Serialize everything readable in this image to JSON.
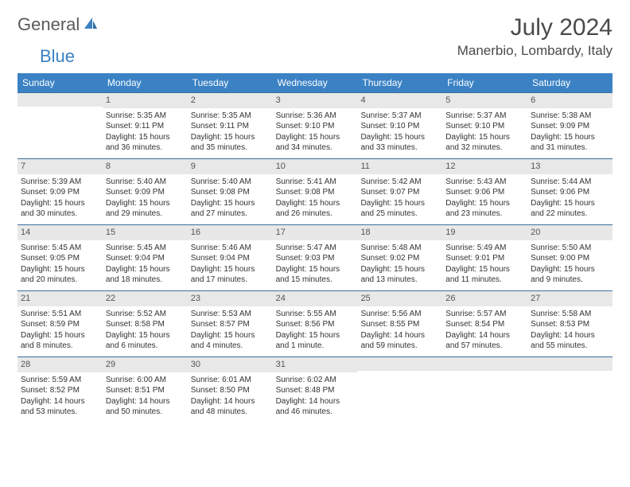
{
  "logo": {
    "text1": "General",
    "text2": "Blue"
  },
  "title": "July 2024",
  "location": "Manerbio, Lombardy, Italy",
  "colors": {
    "header_bg": "#3b82c4",
    "header_text": "#ffffff",
    "row_border": "#3b6fa0",
    "daynum_bg": "#e8e8e8",
    "daynum_text": "#555555",
    "body_text": "#333333",
    "logo_gray": "#5a5a5a",
    "logo_blue": "#3b82c4"
  },
  "weekdays": [
    "Sunday",
    "Monday",
    "Tuesday",
    "Wednesday",
    "Thursday",
    "Friday",
    "Saturday"
  ],
  "weeks": [
    [
      {
        "day": "",
        "sunrise": "",
        "sunset": "",
        "daylight1": "",
        "daylight2": ""
      },
      {
        "day": "1",
        "sunrise": "Sunrise: 5:35 AM",
        "sunset": "Sunset: 9:11 PM",
        "daylight1": "Daylight: 15 hours",
        "daylight2": "and 36 minutes."
      },
      {
        "day": "2",
        "sunrise": "Sunrise: 5:35 AM",
        "sunset": "Sunset: 9:11 PM",
        "daylight1": "Daylight: 15 hours",
        "daylight2": "and 35 minutes."
      },
      {
        "day": "3",
        "sunrise": "Sunrise: 5:36 AM",
        "sunset": "Sunset: 9:10 PM",
        "daylight1": "Daylight: 15 hours",
        "daylight2": "and 34 minutes."
      },
      {
        "day": "4",
        "sunrise": "Sunrise: 5:37 AM",
        "sunset": "Sunset: 9:10 PM",
        "daylight1": "Daylight: 15 hours",
        "daylight2": "and 33 minutes."
      },
      {
        "day": "5",
        "sunrise": "Sunrise: 5:37 AM",
        "sunset": "Sunset: 9:10 PM",
        "daylight1": "Daylight: 15 hours",
        "daylight2": "and 32 minutes."
      },
      {
        "day": "6",
        "sunrise": "Sunrise: 5:38 AM",
        "sunset": "Sunset: 9:09 PM",
        "daylight1": "Daylight: 15 hours",
        "daylight2": "and 31 minutes."
      }
    ],
    [
      {
        "day": "7",
        "sunrise": "Sunrise: 5:39 AM",
        "sunset": "Sunset: 9:09 PM",
        "daylight1": "Daylight: 15 hours",
        "daylight2": "and 30 minutes."
      },
      {
        "day": "8",
        "sunrise": "Sunrise: 5:40 AM",
        "sunset": "Sunset: 9:09 PM",
        "daylight1": "Daylight: 15 hours",
        "daylight2": "and 29 minutes."
      },
      {
        "day": "9",
        "sunrise": "Sunrise: 5:40 AM",
        "sunset": "Sunset: 9:08 PM",
        "daylight1": "Daylight: 15 hours",
        "daylight2": "and 27 minutes."
      },
      {
        "day": "10",
        "sunrise": "Sunrise: 5:41 AM",
        "sunset": "Sunset: 9:08 PM",
        "daylight1": "Daylight: 15 hours",
        "daylight2": "and 26 minutes."
      },
      {
        "day": "11",
        "sunrise": "Sunrise: 5:42 AM",
        "sunset": "Sunset: 9:07 PM",
        "daylight1": "Daylight: 15 hours",
        "daylight2": "and 25 minutes."
      },
      {
        "day": "12",
        "sunrise": "Sunrise: 5:43 AM",
        "sunset": "Sunset: 9:06 PM",
        "daylight1": "Daylight: 15 hours",
        "daylight2": "and 23 minutes."
      },
      {
        "day": "13",
        "sunrise": "Sunrise: 5:44 AM",
        "sunset": "Sunset: 9:06 PM",
        "daylight1": "Daylight: 15 hours",
        "daylight2": "and 22 minutes."
      }
    ],
    [
      {
        "day": "14",
        "sunrise": "Sunrise: 5:45 AM",
        "sunset": "Sunset: 9:05 PM",
        "daylight1": "Daylight: 15 hours",
        "daylight2": "and 20 minutes."
      },
      {
        "day": "15",
        "sunrise": "Sunrise: 5:45 AM",
        "sunset": "Sunset: 9:04 PM",
        "daylight1": "Daylight: 15 hours",
        "daylight2": "and 18 minutes."
      },
      {
        "day": "16",
        "sunrise": "Sunrise: 5:46 AM",
        "sunset": "Sunset: 9:04 PM",
        "daylight1": "Daylight: 15 hours",
        "daylight2": "and 17 minutes."
      },
      {
        "day": "17",
        "sunrise": "Sunrise: 5:47 AM",
        "sunset": "Sunset: 9:03 PM",
        "daylight1": "Daylight: 15 hours",
        "daylight2": "and 15 minutes."
      },
      {
        "day": "18",
        "sunrise": "Sunrise: 5:48 AM",
        "sunset": "Sunset: 9:02 PM",
        "daylight1": "Daylight: 15 hours",
        "daylight2": "and 13 minutes."
      },
      {
        "day": "19",
        "sunrise": "Sunrise: 5:49 AM",
        "sunset": "Sunset: 9:01 PM",
        "daylight1": "Daylight: 15 hours",
        "daylight2": "and 11 minutes."
      },
      {
        "day": "20",
        "sunrise": "Sunrise: 5:50 AM",
        "sunset": "Sunset: 9:00 PM",
        "daylight1": "Daylight: 15 hours",
        "daylight2": "and 9 minutes."
      }
    ],
    [
      {
        "day": "21",
        "sunrise": "Sunrise: 5:51 AM",
        "sunset": "Sunset: 8:59 PM",
        "daylight1": "Daylight: 15 hours",
        "daylight2": "and 8 minutes."
      },
      {
        "day": "22",
        "sunrise": "Sunrise: 5:52 AM",
        "sunset": "Sunset: 8:58 PM",
        "daylight1": "Daylight: 15 hours",
        "daylight2": "and 6 minutes."
      },
      {
        "day": "23",
        "sunrise": "Sunrise: 5:53 AM",
        "sunset": "Sunset: 8:57 PM",
        "daylight1": "Daylight: 15 hours",
        "daylight2": "and 4 minutes."
      },
      {
        "day": "24",
        "sunrise": "Sunrise: 5:55 AM",
        "sunset": "Sunset: 8:56 PM",
        "daylight1": "Daylight: 15 hours",
        "daylight2": "and 1 minute."
      },
      {
        "day": "25",
        "sunrise": "Sunrise: 5:56 AM",
        "sunset": "Sunset: 8:55 PM",
        "daylight1": "Daylight: 14 hours",
        "daylight2": "and 59 minutes."
      },
      {
        "day": "26",
        "sunrise": "Sunrise: 5:57 AM",
        "sunset": "Sunset: 8:54 PM",
        "daylight1": "Daylight: 14 hours",
        "daylight2": "and 57 minutes."
      },
      {
        "day": "27",
        "sunrise": "Sunrise: 5:58 AM",
        "sunset": "Sunset: 8:53 PM",
        "daylight1": "Daylight: 14 hours",
        "daylight2": "and 55 minutes."
      }
    ],
    [
      {
        "day": "28",
        "sunrise": "Sunrise: 5:59 AM",
        "sunset": "Sunset: 8:52 PM",
        "daylight1": "Daylight: 14 hours",
        "daylight2": "and 53 minutes."
      },
      {
        "day": "29",
        "sunrise": "Sunrise: 6:00 AM",
        "sunset": "Sunset: 8:51 PM",
        "daylight1": "Daylight: 14 hours",
        "daylight2": "and 50 minutes."
      },
      {
        "day": "30",
        "sunrise": "Sunrise: 6:01 AM",
        "sunset": "Sunset: 8:50 PM",
        "daylight1": "Daylight: 14 hours",
        "daylight2": "and 48 minutes."
      },
      {
        "day": "31",
        "sunrise": "Sunrise: 6:02 AM",
        "sunset": "Sunset: 8:48 PM",
        "daylight1": "Daylight: 14 hours",
        "daylight2": "and 46 minutes."
      },
      {
        "day": "",
        "sunrise": "",
        "sunset": "",
        "daylight1": "",
        "daylight2": ""
      },
      {
        "day": "",
        "sunrise": "",
        "sunset": "",
        "daylight1": "",
        "daylight2": ""
      },
      {
        "day": "",
        "sunrise": "",
        "sunset": "",
        "daylight1": "",
        "daylight2": ""
      }
    ]
  ]
}
